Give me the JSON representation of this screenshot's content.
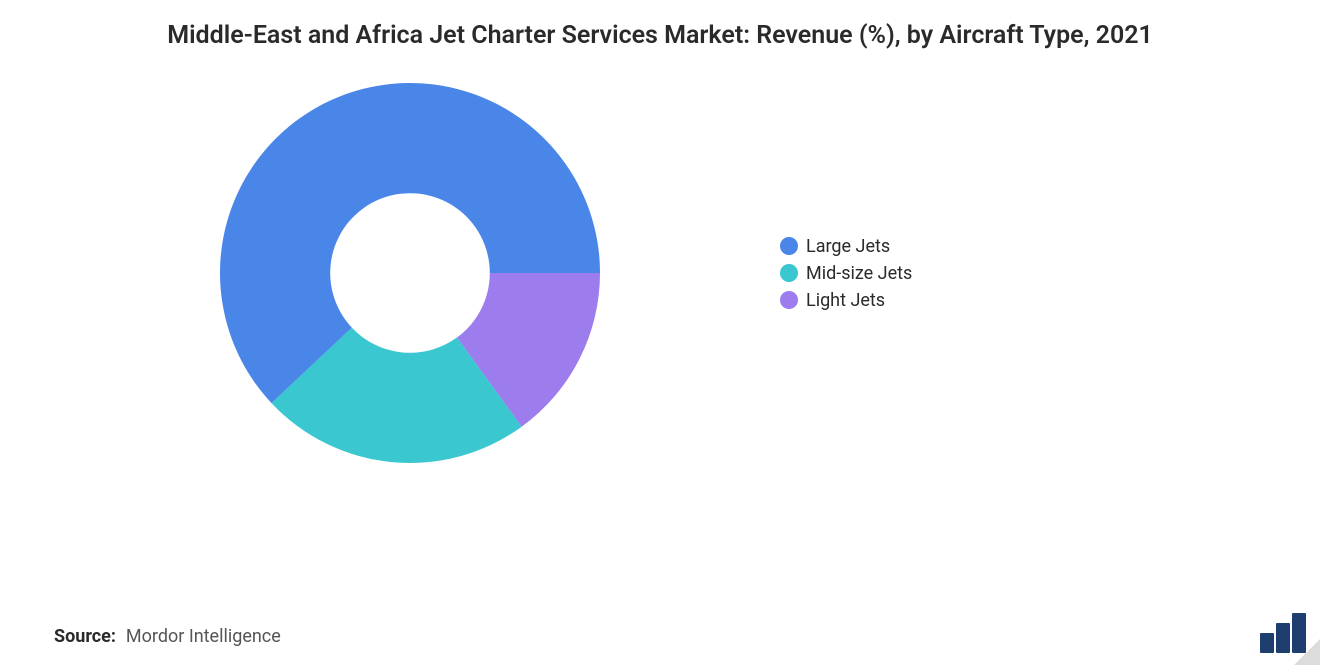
{
  "title": "Middle-East and Africa Jet Charter Services Market: Revenue (%), by Aircraft Type, 2021",
  "chart": {
    "type": "donut",
    "inner_radius_pct": 42,
    "outer_radius_pct": 100,
    "background_color": "#ffffff",
    "start_angle_deg": 90,
    "direction": "clockwise",
    "segments": [
      {
        "label": "Large Jets",
        "value": 62,
        "color": "#4a86e8"
      },
      {
        "label": "Mid-size Jets",
        "value": 23,
        "color": "#3ac7cf"
      },
      {
        "label": "Light Jets",
        "value": 15,
        "color": "#9d7ced"
      }
    ]
  },
  "legend": {
    "items": [
      {
        "label": "Large Jets",
        "color": "#4a86e8"
      },
      {
        "label": "Mid-size Jets",
        "color": "#3ac7cf"
      },
      {
        "label": "Light Jets",
        "color": "#9d7ced"
      }
    ],
    "font_size_pt": 14,
    "text_color": "#2a2a2a"
  },
  "source": {
    "label": "Source:",
    "value": "Mordor Intelligence"
  },
  "watermark": {
    "bar_colors": [
      "#1d3e6e",
      "#1d3e6e",
      "#1d3e6e"
    ]
  },
  "typography": {
    "title_fontsize_pt": 19,
    "title_weight": 600,
    "title_color": "#2a2a2a"
  }
}
